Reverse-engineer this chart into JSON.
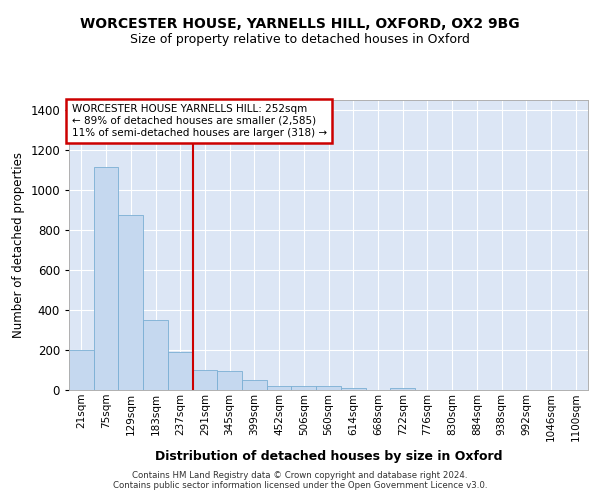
{
  "title1": "WORCESTER HOUSE, YARNELLS HILL, OXFORD, OX2 9BG",
  "title2": "Size of property relative to detached houses in Oxford",
  "xlabel": "Distribution of detached houses by size in Oxford",
  "ylabel": "Number of detached properties",
  "footer": "Contains HM Land Registry data © Crown copyright and database right 2024.\nContains public sector information licensed under the Open Government Licence v3.0.",
  "bar_labels": [
    "21sqm",
    "75sqm",
    "129sqm",
    "183sqm",
    "237sqm",
    "291sqm",
    "345sqm",
    "399sqm",
    "452sqm",
    "506sqm",
    "560sqm",
    "614sqm",
    "668sqm",
    "722sqm",
    "776sqm",
    "830sqm",
    "884sqm",
    "938sqm",
    "992sqm",
    "1046sqm",
    "1100sqm"
  ],
  "bar_values": [
    200,
    1117,
    876,
    351,
    192,
    101,
    97,
    50,
    22,
    18,
    18,
    10,
    0,
    10,
    0,
    0,
    0,
    0,
    0,
    0,
    0
  ],
  "bar_color": "#c5d8ef",
  "bar_edge_color": "#7aafd4",
  "background_color": "#dce6f5",
  "ylim": [
    0,
    1450
  ],
  "yticks": [
    0,
    200,
    400,
    600,
    800,
    1000,
    1200,
    1400
  ],
  "vline_color": "#cc0000",
  "annotation_text": "WORCESTER HOUSE YARNELLS HILL: 252sqm\n← 89% of detached houses are smaller (2,585)\n11% of semi-detached houses are larger (318) →",
  "annotation_box_color": "#cc0000",
  "title1_fontsize": 10,
  "title2_fontsize": 9
}
